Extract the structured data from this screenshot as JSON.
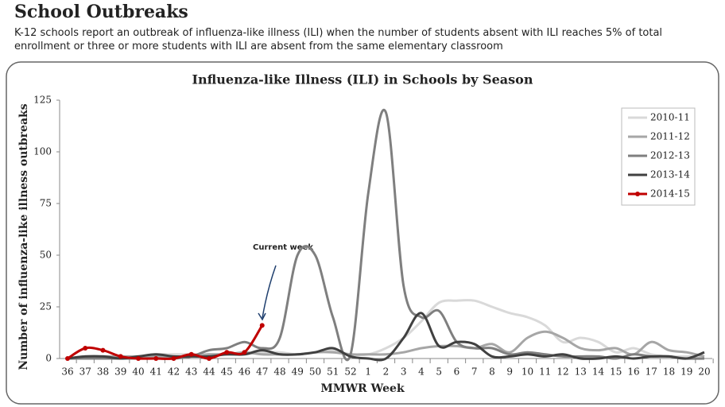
{
  "header": {
    "title": "School Outbreaks",
    "description": "K-12 schools report an outbreak of influenza-like illness (ILI) when the number of students absent with ILI reaches 5% of total enrollment or three or more students with ILI are absent from the same elementary classroom"
  },
  "chart_data": {
    "type": "line",
    "title": "Influenza-like Illness (ILI) in Schools by Season",
    "x_label": "MMWR Week",
    "y_label": "Number of influenza-like illness outbreaks",
    "annotation": "Current week",
    "categories": [
      "36",
      "37",
      "38",
      "39",
      "40",
      "41",
      "42",
      "43",
      "44",
      "45",
      "46",
      "47",
      "48",
      "49",
      "50",
      "51",
      "52",
      "1",
      "2",
      "3",
      "4",
      "5",
      "6",
      "7",
      "8",
      "9",
      "10",
      "11",
      "12",
      "13",
      "14",
      "15",
      "16",
      "17",
      "18",
      "19",
      "20"
    ],
    "ylim": [
      0,
      125
    ],
    "yticks": [
      0,
      25,
      50,
      75,
      100,
      125
    ],
    "grid": false,
    "legend": "upper right",
    "series": [
      {
        "name": "2010-11",
        "color": "#d9d9d9",
        "markers": false,
        "values": [
          0,
          1,
          1,
          1,
          1,
          2,
          2,
          2,
          2,
          2,
          2,
          3,
          3,
          2,
          3,
          4,
          2,
          2,
          5,
          10,
          18,
          27,
          28,
          28,
          25,
          22,
          20,
          16,
          8,
          10,
          8,
          3,
          5,
          2,
          1,
          1,
          1
        ]
      },
      {
        "name": "2011-12",
        "color": "#a6a6a6",
        "markers": false,
        "values": [
          0,
          1,
          1,
          1,
          1,
          1,
          1,
          1,
          2,
          2,
          3,
          2,
          2,
          2,
          3,
          3,
          2,
          2,
          2,
          3,
          5,
          6,
          6,
          5,
          7,
          3,
          10,
          13,
          10,
          5,
          4,
          5,
          2,
          8,
          4,
          3,
          1
        ]
      },
      {
        "name": "2012-13",
        "color": "#7f7f7f",
        "markers": false,
        "values": [
          0,
          0,
          0,
          0,
          0,
          0,
          0,
          1,
          4,
          5,
          8,
          5,
          10,
          50,
          50,
          20,
          2,
          80,
          119,
          35,
          20,
          23,
          8,
          5,
          5,
          2,
          3,
          2,
          1,
          1,
          1,
          0,
          2,
          1,
          1,
          0,
          0
        ]
      },
      {
        "name": "2013-14",
        "color": "#404040",
        "markers": false,
        "values": [
          0,
          1,
          1,
          0,
          1,
          2,
          1,
          1,
          1,
          2,
          2,
          4,
          2,
          2,
          3,
          5,
          1,
          0,
          0,
          10,
          22,
          6,
          8,
          7,
          1,
          1,
          2,
          1,
          2,
          0,
          0,
          1,
          0,
          1,
          1,
          0,
          3
        ]
      },
      {
        "name": "2014-15",
        "color": "#c00000",
        "markers": true,
        "values": [
          0,
          5,
          4,
          1,
          0,
          0,
          0,
          2,
          0,
          3,
          3,
          16,
          null,
          null,
          null,
          null,
          null,
          null,
          null,
          null,
          null,
          null,
          null,
          null,
          null,
          null,
          null,
          null,
          null,
          null,
          null,
          null,
          null,
          null,
          null,
          null,
          null
        ]
      }
    ]
  }
}
